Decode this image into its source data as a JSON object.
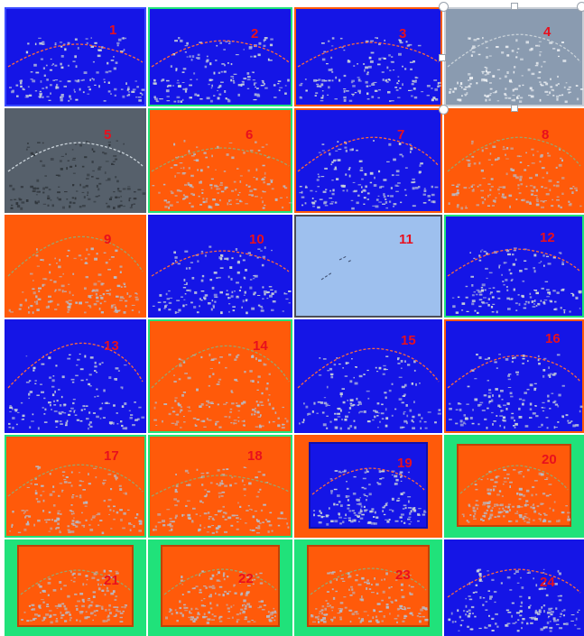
{
  "image": {
    "description_colors": {
      "blue": "#1515e6",
      "orange": "#ff5a0a",
      "green": "#20e27a",
      "gray": "#8a9bb0",
      "dark_gray": "#56606b",
      "light_blue": "#9ec0ee",
      "number_red": "#e8101e",
      "speckle": "#c9d2d9"
    },
    "panels": [
      {
        "label": "1",
        "bg": "blue"
      },
      {
        "label": "2",
        "bg": "blue"
      },
      {
        "label": "3",
        "bg": "blue"
      },
      {
        "label": "4",
        "bg": "gray"
      },
      {
        "label": "5",
        "bg": "dark_gray"
      },
      {
        "label": "6",
        "bg": "orange"
      },
      {
        "label": "7",
        "bg": "blue"
      },
      {
        "label": "8",
        "bg": "orange"
      },
      {
        "label": "9",
        "bg": "orange"
      },
      {
        "label": "10",
        "bg": "blue"
      },
      {
        "label": "11",
        "bg": "light_blue"
      },
      {
        "label": "12",
        "bg": "blue"
      },
      {
        "label": "13",
        "bg": "blue"
      },
      {
        "label": "14",
        "bg": "orange"
      },
      {
        "label": "15",
        "bg": "blue"
      },
      {
        "label": "16",
        "bg": "blue"
      },
      {
        "label": "17",
        "bg": "orange"
      },
      {
        "label": "18",
        "bg": "orange"
      },
      {
        "label": "19",
        "bg": "blue"
      },
      {
        "label": "20",
        "bg": "orange"
      },
      {
        "label": "21",
        "bg": "orange"
      },
      {
        "label": "22",
        "bg": "orange"
      },
      {
        "label": "23",
        "bg": "orange"
      },
      {
        "label": "24",
        "bg": "blue"
      }
    ]
  }
}
